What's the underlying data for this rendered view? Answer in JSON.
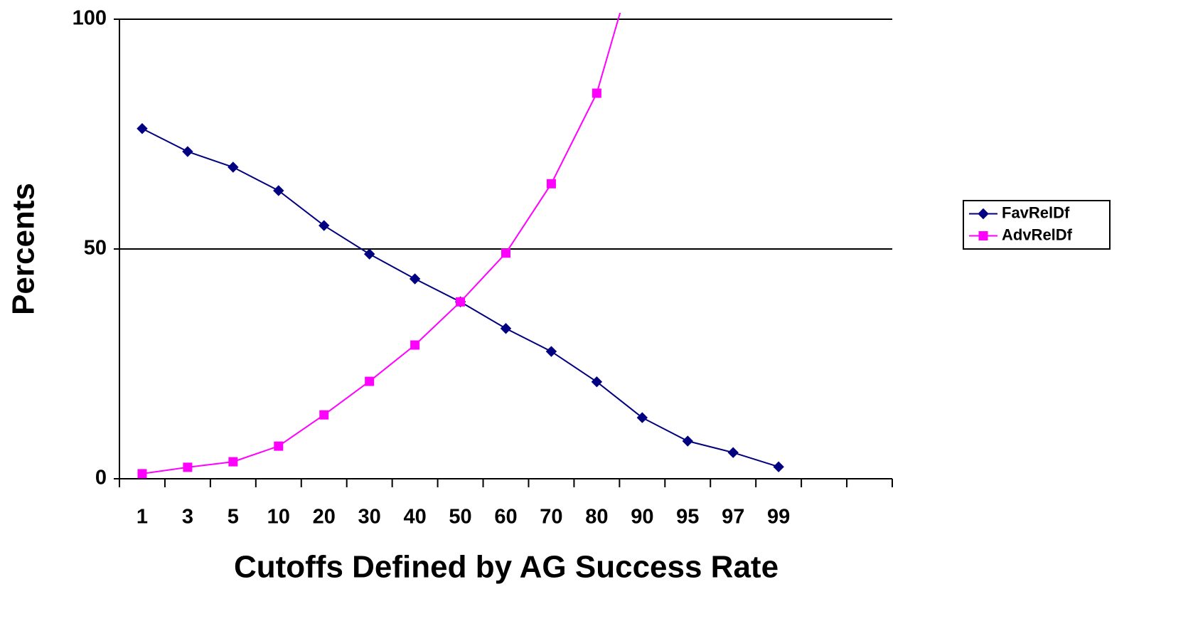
{
  "chart_data": {
    "type": "line",
    "xlabel": "Cutoffs Defined by AG Success Rate",
    "ylabel": "Percents",
    "categories": [
      "1",
      "3",
      "5",
      "10",
      "20",
      "30",
      "40",
      "50",
      "60",
      "70",
      "80",
      "90",
      "95",
      "97",
      "99",
      null,
      null
    ],
    "series": [
      {
        "name": "FavRelDf",
        "color": "#000080",
        "marker": "diamond",
        "values": [
          76.2,
          71.2,
          67.8,
          62.7,
          55.1,
          48.9,
          43.5,
          38.5,
          32.7,
          27.7,
          21.1,
          13.3,
          8.2,
          5.7,
          2.6,
          null,
          null
        ]
      },
      {
        "name": "AdvRelDf",
        "color": "#FF00FF",
        "marker": "square",
        "values": [
          1.1,
          2.5,
          3.7,
          7.1,
          13.9,
          21.2,
          29.1,
          38.5,
          49.1,
          64.2,
          83.9,
          118,
          null,
          null,
          null,
          null,
          null
        ]
      }
    ],
    "ylim": [
      0,
      100
    ],
    "yticks": [
      0,
      50,
      100
    ],
    "grid": true,
    "legend": "right"
  }
}
